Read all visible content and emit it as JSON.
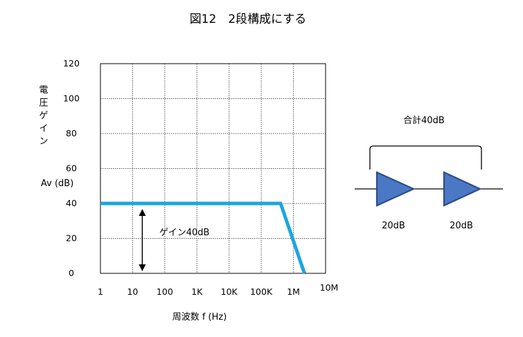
{
  "title": "図12　2段構成にする",
  "chart_data": {
    "type": "line",
    "xlabel": "周波数  f (Hz)",
    "ylabel_lines": [
      "電",
      "圧",
      "ゲ",
      "イ",
      "ン"
    ],
    "ylabel_unit": "Av (dB)",
    "x_scale": "log",
    "x_ticks": [
      {
        "value": 1,
        "label": "1"
      },
      {
        "value": 10,
        "label": "10"
      },
      {
        "value": 100,
        "label": "100"
      },
      {
        "value": 1000,
        "label": "1K"
      },
      {
        "value": 10000,
        "label": "10K"
      },
      {
        "value": 100000,
        "label": "100K"
      },
      {
        "value": 1000000,
        "label": "1M"
      },
      {
        "value": 10000000,
        "label": "10M"
      }
    ],
    "y_ticks": [
      0,
      20,
      40,
      60,
      80,
      100,
      120
    ],
    "ylim": [
      0,
      120
    ],
    "xlim": [
      1,
      10000000
    ],
    "grid": true,
    "series": [
      {
        "color": "#1ba6e0",
        "points": [
          [
            1,
            40
          ],
          [
            400000,
            40
          ],
          [
            2200000,
            0
          ]
        ]
      }
    ],
    "annotations": [
      {
        "text": "ゲイン40dB",
        "arrow_from": 0,
        "arrow_to": 40,
        "arrow_x": 20
      }
    ]
  },
  "diagram": {
    "total_label": "合計40dB",
    "stage_labels": [
      "20dB",
      "20dB"
    ],
    "amp_fill": "#4a78c4",
    "amp_stroke": "#2e4d86"
  }
}
